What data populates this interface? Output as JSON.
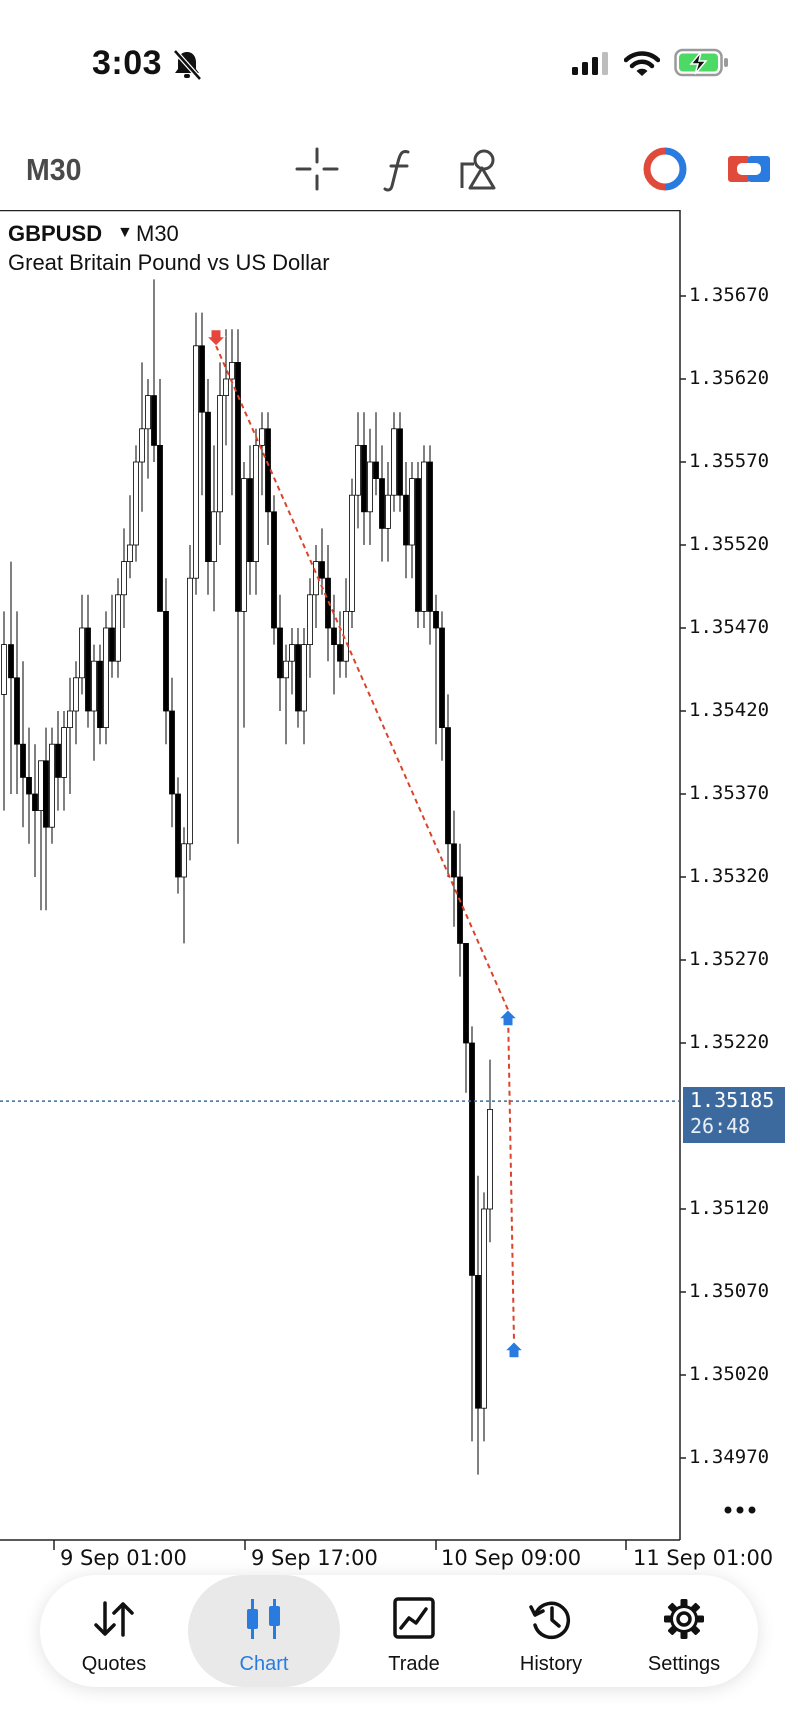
{
  "status_bar": {
    "time": "3:03"
  },
  "toolbar": {
    "timeframe": "M30"
  },
  "chart": {
    "symbol": "GBPUSD",
    "timeframe": "M30",
    "description": "Great Britain Pound vs US Dollar",
    "price_axis": [
      "1.35670",
      "1.35620",
      "1.35570",
      "1.35520",
      "1.35470",
      "1.35420",
      "1.35370",
      "1.35320",
      "1.35270",
      "1.35220",
      "1.35120",
      "1.35070",
      "1.35020",
      "1.34970"
    ],
    "time_axis": [
      "9 Sep 01:00",
      "9 Sep 17:00",
      "10 Sep 09:00",
      "11 Sep 01:00"
    ],
    "current_price": "1.35185",
    "countdown": "26:48",
    "colors": {
      "bull_body": "#ffffff",
      "bear_body": "#000000",
      "wick": "#000000",
      "trade_line": "#d9442b",
      "sell_arrow": "#e5453a",
      "buy_arrow": "#2a7be0",
      "price_line": "#3d6a9e"
    }
  },
  "chart_data": {
    "type": "candlestick",
    "symbol": "GBPUSD",
    "ylim": [
      1.3494,
      1.3568
    ],
    "trades": [
      {
        "side": "sell",
        "price": 1.3564
      },
      {
        "side": "buy",
        "price": 1.3524
      },
      {
        "side": "buy",
        "price": 1.3504
      }
    ],
    "current_price": 1.35185
  },
  "tabs": [
    {
      "label": "Quotes",
      "icon": "quotes-icon"
    },
    {
      "label": "Chart",
      "icon": "chart-icon",
      "active": true
    },
    {
      "label": "Trade",
      "icon": "trade-icon"
    },
    {
      "label": "History",
      "icon": "history-icon"
    },
    {
      "label": "Settings",
      "icon": "settings-icon"
    }
  ]
}
